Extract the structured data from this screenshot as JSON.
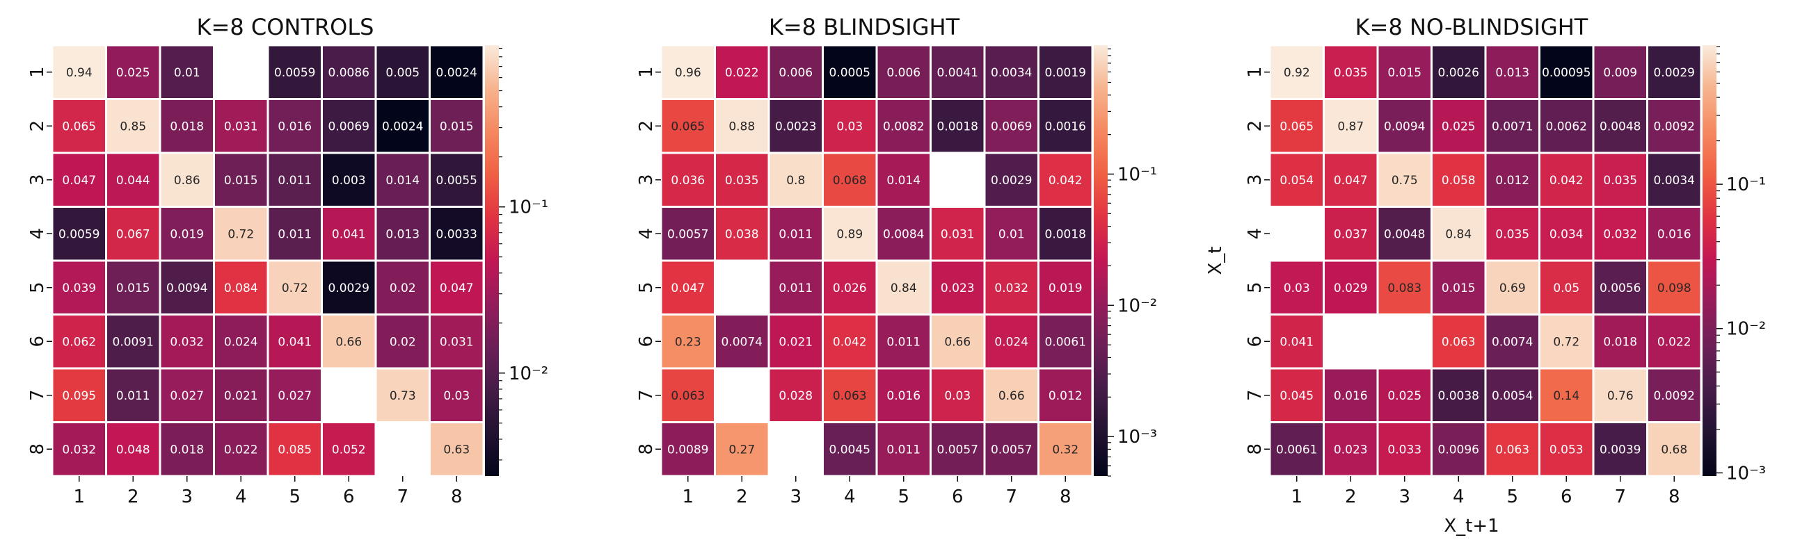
{
  "chart_data": [
    {
      "type": "heatmap",
      "title": "K=8 CONTROLS",
      "x_categories": [
        "1",
        "2",
        "3",
        "4",
        "5",
        "6",
        "7",
        "8"
      ],
      "y_categories": [
        "1",
        "2",
        "3",
        "4",
        "5",
        "6",
        "7",
        "8"
      ],
      "xlabel": "",
      "ylabel": "",
      "color_scale": "log",
      "colormap": "rocket",
      "vmin": 0.0024,
      "vmax": 0.94,
      "colorbar_ticks": [
        {
          "value": 0.1,
          "label": "10⁻¹"
        },
        {
          "value": 0.01,
          "label": "10⁻²"
        }
      ],
      "values": [
        [
          0.94,
          0.025,
          0.01,
          null,
          0.0059,
          0.0086,
          0.005,
          0.0024
        ],
        [
          0.065,
          0.85,
          0.018,
          0.031,
          0.016,
          0.0069,
          0.0024,
          0.015
        ],
        [
          0.047,
          0.044,
          0.86,
          0.015,
          0.011,
          0.003,
          0.014,
          0.0055
        ],
        [
          0.0059,
          0.067,
          0.019,
          0.72,
          0.011,
          0.041,
          0.013,
          0.0033
        ],
        [
          0.039,
          0.015,
          0.0094,
          0.084,
          0.72,
          0.0029,
          0.02,
          0.047
        ],
        [
          0.062,
          0.0091,
          0.032,
          0.024,
          0.041,
          0.66,
          0.02,
          0.031
        ],
        [
          0.095,
          0.011,
          0.027,
          0.021,
          0.027,
          null,
          0.73,
          0.03
        ],
        [
          0.032,
          0.048,
          0.018,
          0.022,
          0.085,
          0.052,
          null,
          0.63
        ]
      ]
    },
    {
      "type": "heatmap",
      "title": "K=8 BLINDSIGHT",
      "x_categories": [
        "1",
        "2",
        "3",
        "4",
        "5",
        "6",
        "7",
        "8"
      ],
      "y_categories": [
        "1",
        "2",
        "3",
        "4",
        "5",
        "6",
        "7",
        "8"
      ],
      "xlabel": "",
      "ylabel": "",
      "color_scale": "log",
      "colormap": "rocket",
      "vmin": 0.0005,
      "vmax": 0.96,
      "colorbar_ticks": [
        {
          "value": 0.1,
          "label": "10⁻¹"
        },
        {
          "value": 0.01,
          "label": "10⁻²"
        },
        {
          "value": 0.001,
          "label": "10⁻³"
        }
      ],
      "values": [
        [
          0.96,
          0.022,
          0.006,
          0.0005,
          0.006,
          0.0041,
          0.0034,
          0.0019
        ],
        [
          0.065,
          0.88,
          0.0023,
          0.03,
          0.0082,
          0.0018,
          0.0069,
          0.0016
        ],
        [
          0.036,
          0.035,
          0.8,
          0.068,
          0.014,
          null,
          0.0029,
          0.042
        ],
        [
          0.0057,
          0.038,
          0.011,
          0.89,
          0.0084,
          0.031,
          0.01,
          0.0018
        ],
        [
          0.047,
          null,
          0.011,
          0.026,
          0.84,
          0.023,
          0.032,
          0.019
        ],
        [
          0.23,
          0.0074,
          0.021,
          0.042,
          0.011,
          0.66,
          0.024,
          0.0061
        ],
        [
          0.063,
          null,
          0.028,
          0.063,
          0.016,
          0.03,
          0.66,
          0.012
        ],
        [
          0.0089,
          0.27,
          null,
          0.0045,
          0.011,
          0.0057,
          0.0057,
          0.32
        ]
      ]
    },
    {
      "type": "heatmap",
      "title": "K=8 NO-BLINDSIGHT",
      "x_categories": [
        "1",
        "2",
        "3",
        "4",
        "5",
        "6",
        "7",
        "8"
      ],
      "y_categories": [
        "1",
        "2",
        "3",
        "4",
        "5",
        "6",
        "7",
        "8"
      ],
      "xlabel": "X_t+1",
      "ylabel": "X_t",
      "color_scale": "log",
      "colormap": "rocket",
      "vmin": 0.00095,
      "vmax": 0.92,
      "colorbar_ticks": [
        {
          "value": 0.1,
          "label": "10⁻¹"
        },
        {
          "value": 0.01,
          "label": "10⁻²"
        },
        {
          "value": 0.001,
          "label": "10⁻³"
        }
      ],
      "values": [
        [
          0.92,
          0.035,
          0.015,
          0.0026,
          0.013,
          0.00095,
          0.009,
          0.0029
        ],
        [
          0.065,
          0.87,
          0.0094,
          0.025,
          0.0071,
          0.0062,
          0.0048,
          0.0092
        ],
        [
          0.054,
          0.047,
          0.75,
          0.058,
          0.012,
          0.042,
          0.035,
          0.0034
        ],
        [
          null,
          0.037,
          0.0048,
          0.84,
          0.035,
          0.034,
          0.032,
          0.016
        ],
        [
          0.03,
          0.029,
          0.083,
          0.015,
          0.69,
          0.05,
          0.0056,
          0.098
        ],
        [
          0.041,
          null,
          null,
          0.063,
          0.0074,
          0.72,
          0.018,
          0.022
        ],
        [
          0.045,
          0.016,
          0.025,
          0.0038,
          0.0054,
          0.14,
          0.76,
          0.0092
        ],
        [
          0.0061,
          0.023,
          0.033,
          0.0096,
          0.063,
          0.053,
          0.0039,
          0.68
        ]
      ]
    }
  ]
}
